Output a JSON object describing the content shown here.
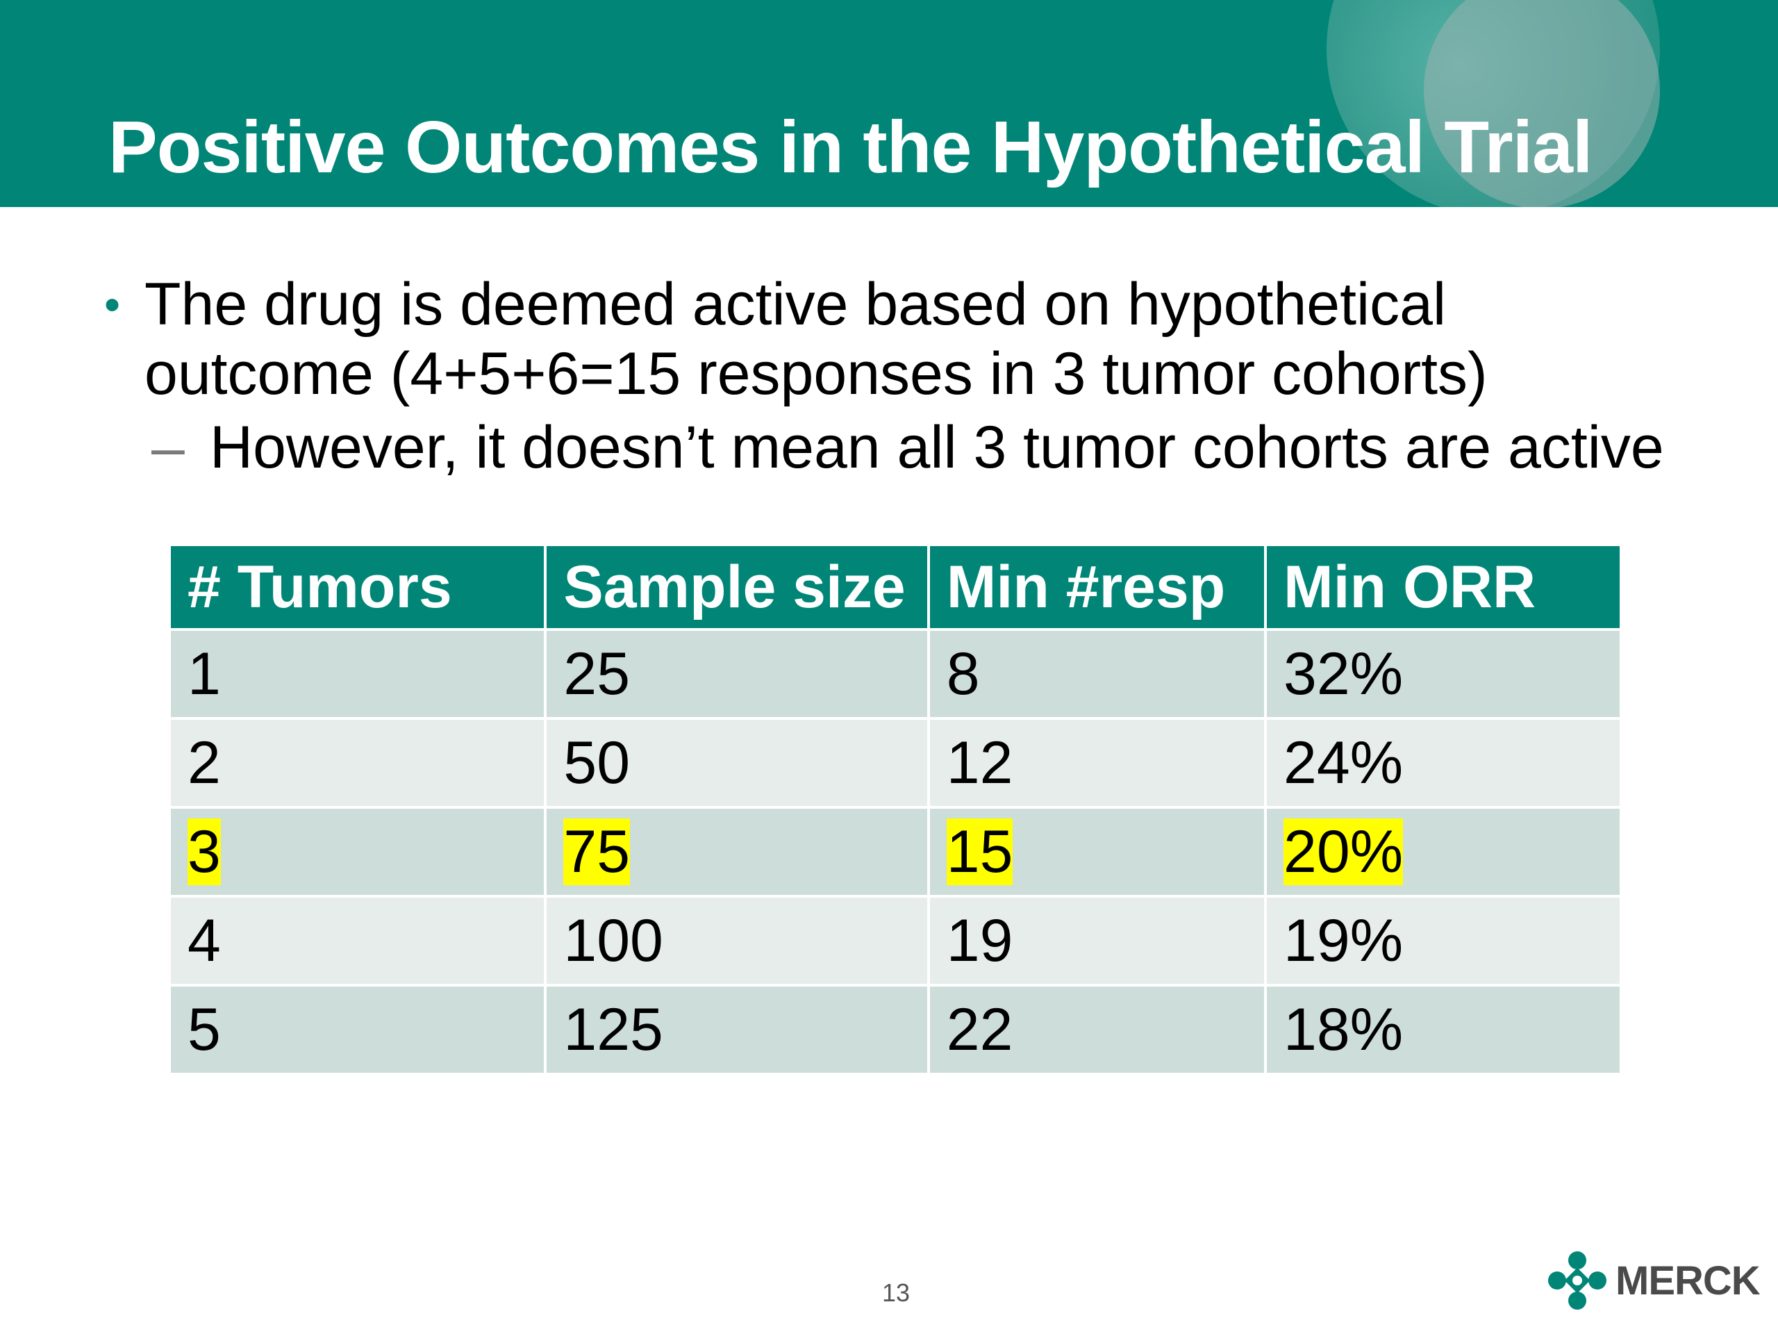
{
  "slide": {
    "title": "Positive Outcomes in the Hypothetical Trial",
    "bullet_line1": "The drug is deemed active based on hypothetical",
    "bullet_line2": "outcome (4+5+6=15 responses in 3 tumor cohorts)",
    "sub_bullet": "However, it doesn’t mean all 3 tumor cohorts are active",
    "page_number": "13",
    "logo_text": "MERCK"
  },
  "table": {
    "headers": [
      "# Tumors",
      "Sample size",
      "Min #resp",
      "Min ORR"
    ],
    "rows": [
      [
        "1",
        "25",
        "8",
        "32%"
      ],
      [
        "2",
        "50",
        "12",
        "24%"
      ],
      [
        "3",
        "75",
        "15",
        "20%"
      ],
      [
        "4",
        "100",
        "19",
        "19%"
      ],
      [
        "5",
        "125",
        "22",
        "18%"
      ]
    ],
    "highlighted_row": 2
  },
  "colors": {
    "brand": "#008577",
    "row_dark": "#cdddd9",
    "row_light": "#e7edeb",
    "highlight": "#ffff00"
  }
}
